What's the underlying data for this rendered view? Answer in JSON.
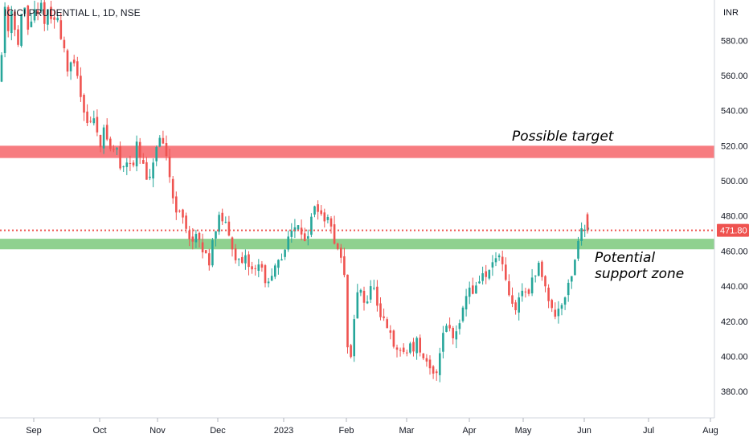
{
  "header": {
    "symbol_line": "ICICI PRUDENTIAL L, 1D, NSE"
  },
  "chart_data": {
    "type": "candlestick",
    "currency_label": "INR",
    "y_ticks": [
      "580.00",
      "560.00",
      "540.00",
      "520.00",
      "500.00",
      "480.00",
      "460.00",
      "440.00",
      "420.00",
      "400.00",
      "380.00"
    ],
    "x_ticks": [
      "Sep",
      "Oct",
      "Nov",
      "Dec",
      "2023",
      "Feb",
      "Mar",
      "Apr",
      "May",
      "Jun",
      "Jul",
      "Aug"
    ],
    "ylim": [
      365,
      603
    ],
    "last_price": 471.8,
    "last_price_label": "471.80",
    "zones": [
      {
        "name": "resistance",
        "label": "Possible target",
        "low": 513,
        "high": 520,
        "color": "#f77c80"
      },
      {
        "name": "support",
        "label_lines": [
          "Potential",
          "support zone"
        ],
        "low": 461,
        "high": 467,
        "color": "#8fd18f"
      }
    ],
    "colors": {
      "up": "#26a69a",
      "down": "#ef5350"
    },
    "price_path": [
      [
        0,
        558
      ],
      [
        6,
        600
      ],
      [
        10,
        586
      ],
      [
        14,
        598
      ],
      [
        18,
        590
      ],
      [
        22,
        575
      ],
      [
        26,
        592
      ],
      [
        30,
        600
      ],
      [
        34,
        585
      ],
      [
        38,
        590
      ],
      [
        42,
        598
      ],
      [
        46,
        590
      ],
      [
        50,
        602
      ],
      [
        55,
        592
      ],
      [
        60,
        596
      ],
      [
        65,
        590
      ],
      [
        70,
        594
      ],
      [
        75,
        585
      ],
      [
        80,
        575
      ],
      [
        85,
        560
      ],
      [
        90,
        568
      ],
      [
        95,
        562
      ],
      [
        100,
        550
      ],
      [
        105,
        540
      ],
      [
        110,
        532
      ],
      [
        115,
        536
      ],
      [
        120,
        530
      ],
      [
        125,
        522
      ],
      [
        130,
        530
      ],
      [
        135,
        520
      ],
      [
        140,
        516
      ],
      [
        145,
        520
      ],
      [
        150,
        506
      ],
      [
        155,
        510
      ],
      [
        160,
        514
      ],
      [
        165,
        508
      ],
      [
        170,
        520
      ],
      [
        175,
        512
      ],
      [
        180,
        506
      ],
      [
        185,
        495
      ],
      [
        190,
        510
      ],
      [
        195,
        520
      ],
      [
        200,
        522
      ],
      [
        205,
        516
      ],
      [
        210,
        508
      ],
      [
        215,
        490
      ],
      [
        220,
        484
      ],
      [
        225,
        480
      ],
      [
        230,
        475
      ],
      [
        235,
        470
      ],
      [
        240,
        465
      ],
      [
        245,
        468
      ],
      [
        250,
        462
      ],
      [
        255,
        458
      ],
      [
        260,
        454
      ],
      [
        265,
        468
      ],
      [
        270,
        476
      ],
      [
        275,
        480
      ],
      [
        280,
        475
      ],
      [
        285,
        468
      ],
      [
        290,
        462
      ],
      [
        295,
        455
      ],
      [
        300,
        450
      ],
      [
        305,
        455
      ],
      [
        310,
        452
      ],
      [
        315,
        448
      ],
      [
        320,
        454
      ],
      [
        325,
        450
      ],
      [
        330,
        444
      ],
      [
        335,
        440
      ],
      [
        340,
        447
      ],
      [
        345,
        452
      ],
      [
        350,
        455
      ],
      [
        355,
        462
      ],
      [
        360,
        474
      ],
      [
        365,
        468
      ],
      [
        370,
        478
      ],
      [
        375,
        472
      ],
      [
        380,
        466
      ],
      [
        385,
        472
      ],
      [
        390,
        484
      ],
      [
        395,
        486
      ],
      [
        400,
        478
      ],
      [
        405,
        480
      ],
      [
        410,
        474
      ],
      [
        415,
        468
      ],
      [
        420,
        462
      ],
      [
        425,
        455
      ],
      [
        430,
        440
      ],
      [
        433,
        400
      ],
      [
        436,
        395
      ],
      [
        440,
        420
      ],
      [
        445,
        435
      ],
      [
        450,
        440
      ],
      [
        455,
        428
      ],
      [
        460,
        438
      ],
      [
        465,
        440
      ],
      [
        470,
        425
      ],
      [
        475,
        418
      ],
      [
        480,
        420
      ],
      [
        485,
        412
      ],
      [
        490,
        405
      ],
      [
        495,
        402
      ],
      [
        500,
        405
      ],
      [
        505,
        400
      ],
      [
        510,
        408
      ],
      [
        515,
        405
      ],
      [
        520,
        410
      ],
      [
        525,
        398
      ],
      [
        530,
        395
      ],
      [
        535,
        392
      ],
      [
        540,
        388
      ],
      [
        545,
        395
      ],
      [
        550,
        412
      ],
      [
        555,
        420
      ],
      [
        560,
        415
      ],
      [
        565,
        410
      ],
      [
        570,
        420
      ],
      [
        575,
        425
      ],
      [
        580,
        435
      ],
      [
        585,
        440
      ],
      [
        590,
        436
      ],
      [
        595,
        442
      ],
      [
        600,
        448
      ],
      [
        605,
        444
      ],
      [
        610,
        450
      ],
      [
        615,
        455
      ],
      [
        620,
        458
      ],
      [
        625,
        450
      ],
      [
        630,
        440
      ],
      [
        635,
        432
      ],
      [
        640,
        425
      ],
      [
        645,
        432
      ],
      [
        650,
        438
      ],
      [
        655,
        436
      ],
      [
        660,
        440
      ],
      [
        665,
        445
      ],
      [
        670,
        452
      ],
      [
        675,
        446
      ],
      [
        680,
        438
      ],
      [
        685,
        430
      ],
      [
        690,
        422
      ],
      [
        695,
        428
      ],
      [
        700,
        432
      ],
      [
        705,
        438
      ],
      [
        710,
        444
      ],
      [
        715,
        455
      ],
      [
        720,
        468
      ],
      [
        725,
        472
      ],
      [
        730,
        474
      ]
    ]
  }
}
